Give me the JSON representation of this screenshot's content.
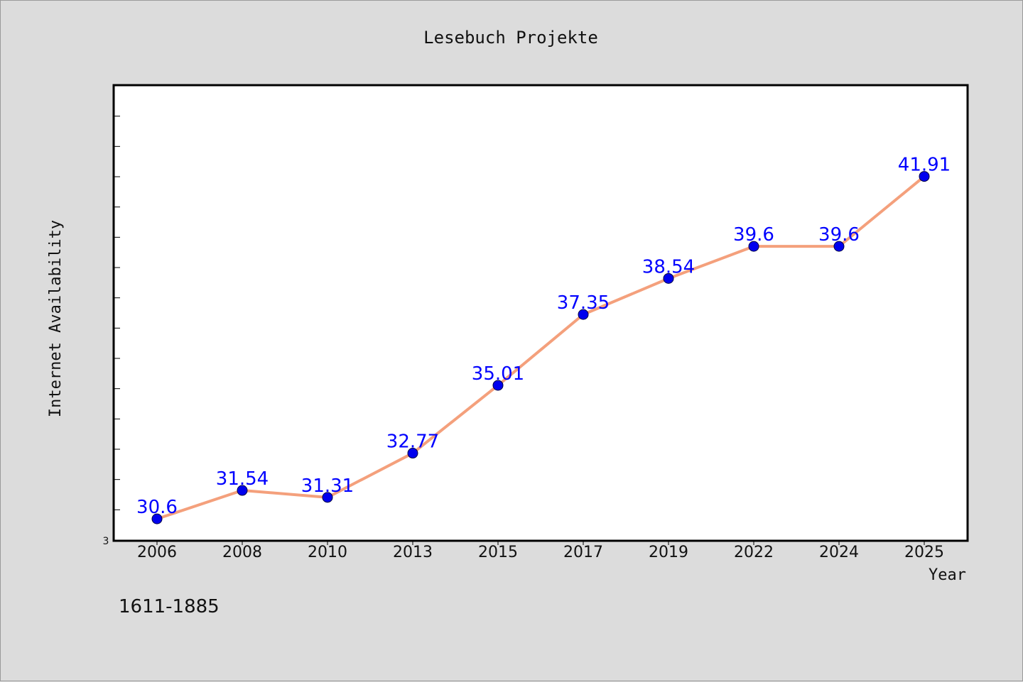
{
  "colors": {
    "background": "#dcdcdc",
    "plot_background": "#ffffff",
    "line": "#f4a07c",
    "marker": "#0000ee",
    "label": "#0000ff"
  },
  "footnote": "1611-1885",
  "chart_data": {
    "type": "line",
    "title": "Lesebuch Projekte",
    "xlabel": "Year",
    "ylabel": "Internet Availability",
    "categories": [
      "2006",
      "2008",
      "2010",
      "2013",
      "2015",
      "2017",
      "2019",
      "2022",
      "2024",
      "2025"
    ],
    "series": [
      {
        "values": [
          30.6,
          31.54,
          31.31,
          32.77,
          35.01,
          37.35,
          38.54,
          39.6,
          39.6,
          41.91
        ],
        "labels": [
          "30.6",
          "31.54",
          "31.31",
          "32.77",
          "35.01",
          "37.35",
          "38.54",
          "39.6",
          "39.6",
          "41.91"
        ]
      }
    ],
    "ylim": [
      29.9,
      44.9
    ],
    "y_tick_label": "3",
    "y_minor_ticks": 14,
    "grid": false,
    "legend": "none"
  }
}
